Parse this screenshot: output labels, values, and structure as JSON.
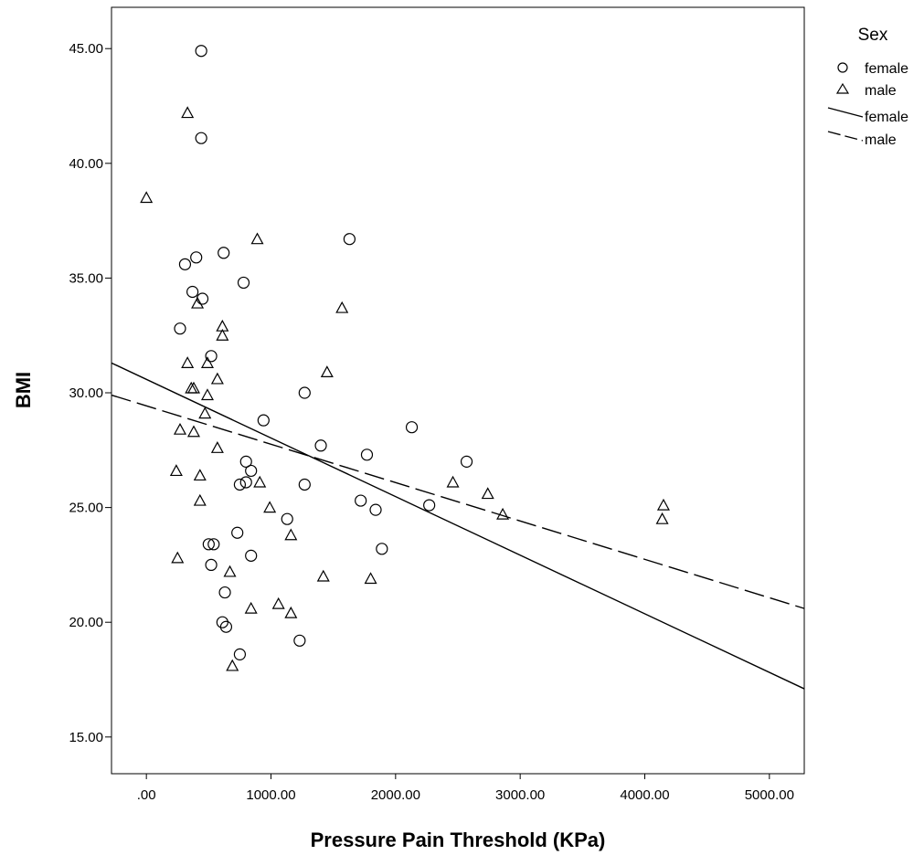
{
  "chart_data": {
    "type": "scatter",
    "xlabel": "Pressure Pain Threshold (KPa)",
    "ylabel": "BMI",
    "xlim": [
      -280,
      5280
    ],
    "ylim": [
      13.4,
      46.8
    ],
    "x_ticks": [
      {
        "value": 0,
        "label": ".00"
      },
      {
        "value": 1000,
        "label": "1000.00"
      },
      {
        "value": 2000,
        "label": "2000.00"
      },
      {
        "value": 3000,
        "label": "3000.00"
      },
      {
        "value": 4000,
        "label": "4000.00"
      },
      {
        "value": 5000,
        "label": "5000.00"
      }
    ],
    "y_ticks": [
      {
        "value": 15,
        "label": "15.00"
      },
      {
        "value": 20,
        "label": "20.00"
      },
      {
        "value": 25,
        "label": "25.00"
      },
      {
        "value": 30,
        "label": "30.00"
      },
      {
        "value": 35,
        "label": "35.00"
      },
      {
        "value": 40,
        "label": "40.00"
      },
      {
        "value": 45,
        "label": "45.00"
      }
    ],
    "legend": {
      "title": "Sex",
      "position": "right",
      "marker_entries": [
        "female",
        "male"
      ],
      "line_entries": [
        "female",
        "male"
      ]
    },
    "series": [
      {
        "name": "female",
        "marker": "circle",
        "points": [
          [
            440,
            44.9
          ],
          [
            440,
            41.1
          ],
          [
            620,
            36.1
          ],
          [
            1630,
            36.7
          ],
          [
            310,
            35.6
          ],
          [
            400,
            35.9
          ],
          [
            370,
            34.4
          ],
          [
            450,
            34.1
          ],
          [
            780,
            34.8
          ],
          [
            270,
            32.8
          ],
          [
            520,
            31.6
          ],
          [
            1270,
            30.0
          ],
          [
            940,
            28.8
          ],
          [
            2130,
            28.5
          ],
          [
            1400,
            27.7
          ],
          [
            1770,
            27.3
          ],
          [
            2570,
            27.0
          ],
          [
            800,
            27.0
          ],
          [
            840,
            26.6
          ],
          [
            750,
            26.0
          ],
          [
            800,
            26.1
          ],
          [
            1270,
            26.0
          ],
          [
            1720,
            25.3
          ],
          [
            1840,
            24.9
          ],
          [
            2270,
            25.1
          ],
          [
            1130,
            24.5
          ],
          [
            730,
            23.9
          ],
          [
            500,
            23.4
          ],
          [
            540,
            23.4
          ],
          [
            1890,
            23.2
          ],
          [
            840,
            22.9
          ],
          [
            520,
            22.5
          ],
          [
            630,
            21.3
          ],
          [
            610,
            20.0
          ],
          [
            640,
            19.8
          ],
          [
            1230,
            19.2
          ],
          [
            750,
            18.6
          ]
        ]
      },
      {
        "name": "male",
        "marker": "triangle",
        "points": [
          [
            330,
            42.2
          ],
          [
            0,
            38.5
          ],
          [
            890,
            36.7
          ],
          [
            1570,
            33.7
          ],
          [
            410,
            33.9
          ],
          [
            610,
            32.9
          ],
          [
            610,
            32.5
          ],
          [
            330,
            31.3
          ],
          [
            490,
            31.3
          ],
          [
            1450,
            30.9
          ],
          [
            570,
            30.6
          ],
          [
            360,
            30.2
          ],
          [
            380,
            30.2
          ],
          [
            490,
            29.9
          ],
          [
            470,
            29.1
          ],
          [
            270,
            28.4
          ],
          [
            380,
            28.3
          ],
          [
            570,
            27.6
          ],
          [
            240,
            26.6
          ],
          [
            430,
            26.4
          ],
          [
            910,
            26.1
          ],
          [
            2460,
            26.1
          ],
          [
            2740,
            25.6
          ],
          [
            430,
            25.3
          ],
          [
            990,
            25.0
          ],
          [
            4150,
            25.1
          ],
          [
            2860,
            24.7
          ],
          [
            4140,
            24.5
          ],
          [
            1160,
            23.8
          ],
          [
            250,
            22.8
          ],
          [
            1420,
            22.0
          ],
          [
            1800,
            21.9
          ],
          [
            670,
            22.2
          ],
          [
            1060,
            20.8
          ],
          [
            840,
            20.6
          ],
          [
            1160,
            20.4
          ],
          [
            690,
            18.1
          ]
        ]
      }
    ],
    "fit_lines": [
      {
        "name": "female",
        "style": "solid",
        "x": [
          -280,
          5280
        ],
        "y": [
          31.3,
          17.1
        ]
      },
      {
        "name": "male",
        "style": "dashed",
        "x": [
          -280,
          5280
        ],
        "y": [
          29.9,
          20.6
        ]
      }
    ],
    "grid": false
  }
}
